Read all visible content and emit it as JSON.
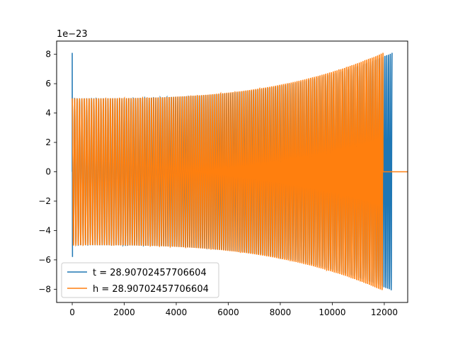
{
  "chart_data": {
    "type": "line",
    "title": "",
    "xlabel": "",
    "ylabel": "",
    "y_scale_label": "1e−23",
    "xlim": [
      -600,
      12900
    ],
    "ylim": [
      -8.9,
      8.9
    ],
    "x_ticks": [
      0,
      2000,
      4000,
      6000,
      8000,
      10000,
      12000
    ],
    "y_ticks": [
      -8,
      -6,
      -4,
      -2,
      0,
      2,
      4,
      6,
      8
    ],
    "x_tick_labels": [
      "0",
      "2000",
      "4000",
      "6000",
      "8000",
      "10000",
      "12000"
    ],
    "y_tick_labels": [
      "−8",
      "−6",
      "−4",
      "−2",
      "0",
      "2",
      "4",
      "6",
      "8"
    ],
    "grid": false,
    "legend_position": "lower-left",
    "series": [
      {
        "name": "t = 28.90702457706604",
        "color": "#1f77b4",
        "signal": "chirp",
        "x_start": 0,
        "x_end": 12300,
        "amplitude_start": 5.0,
        "amplitude_end": 8.1,
        "initial_spike": [
          8.1,
          -5.8
        ],
        "approx_cycles": 155
      },
      {
        "name": "h = 28.90702457706604",
        "color": "#ff7f0e",
        "signal": "chirp",
        "x_start": 0,
        "x_end": 11950,
        "amplitude_start": 5.0,
        "amplitude_end": 8.1,
        "flat_after_x": 11950,
        "approx_cycles": 150
      }
    ]
  }
}
